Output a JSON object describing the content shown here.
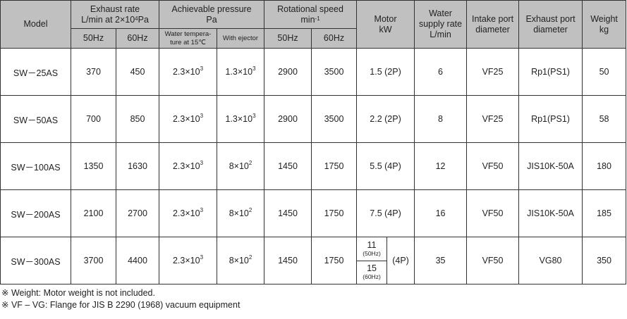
{
  "header": {
    "model": "Model",
    "exhaust_rate": {
      "title": "Exhaust rate",
      "unit_pre": "L/min at 2×10",
      "unit_exp": "4",
      "unit_post": "Pa"
    },
    "pressure": {
      "title": "Achievable pressure",
      "unit": "Pa"
    },
    "speed": {
      "title": "Rotational speed",
      "unit": "min",
      "unit_exp": "-1"
    },
    "motor": {
      "title": "Motor",
      "unit": "kW"
    },
    "water": {
      "line1": "Water",
      "line2": "supply rate",
      "line3": "L/min"
    },
    "intake": {
      "line1": "Intake port",
      "line2": "diameter"
    },
    "exhaust_port": {
      "line1": "Exhaust port",
      "line2": "diameter"
    },
    "weight": {
      "line1": "Weight",
      "line2": "kg"
    },
    "sub": {
      "hz50": "50Hz",
      "hz60": "60Hz",
      "water_temp_1": "Water tempera-",
      "water_temp_2": "ture at 15℃",
      "with_ejector": "With ejector",
      "speed_hz50": "50Hz",
      "speed_hz60": "60Hz"
    }
  },
  "rows": [
    {
      "model": "SW－25AS",
      "ex50": "370",
      "ex60": "450",
      "p_base": "2.3×10",
      "p_exp": "3",
      "e_base": "1.3×10",
      "e_exp": "3",
      "s50": "2900",
      "s60": "3500",
      "motor": "1.5 (2P)",
      "water": "6",
      "intake": "VF25",
      "exhaust": "Rp1(PS1)",
      "weight": "50"
    },
    {
      "model": "SW－50AS",
      "ex50": "700",
      "ex60": "850",
      "p_base": "2.3×10",
      "p_exp": "3",
      "e_base": "1.3×10",
      "e_exp": "3",
      "s50": "2900",
      "s60": "3500",
      "motor": "2.2 (2P)",
      "water": "8",
      "intake": "VF25",
      "exhaust": "Rp1(PS1)",
      "weight": "58"
    },
    {
      "model": "SW－100AS",
      "ex50": "1350",
      "ex60": "1630",
      "p_base": "2.3×10",
      "p_exp": "3",
      "e_base": "8×10",
      "e_exp": "2",
      "s50": "1450",
      "s60": "1750",
      "motor": "5.5 (4P)",
      "water": "12",
      "intake": "VF50",
      "exhaust": "JIS10K-50A",
      "weight": "180"
    },
    {
      "model": "SW－200AS",
      "ex50": "2100",
      "ex60": "2700",
      "p_base": "2.3×10",
      "p_exp": "3",
      "e_base": "8×10",
      "e_exp": "2",
      "s50": "1450",
      "s60": "1750",
      "motor": "7.5 (4P)",
      "water": "16",
      "intake": "VF50",
      "exhaust": "JIS10K-50A",
      "weight": "185"
    },
    {
      "model": "SW－300AS",
      "ex50": "3700",
      "ex60": "4400",
      "p_base": "2.3×10",
      "p_exp": "3",
      "e_base": "8×10",
      "e_exp": "2",
      "s50": "1450",
      "s60": "1750",
      "motor_split": {
        "v50": "11",
        "hz50": "(50Hz)",
        "v60": "15",
        "hz60": "(60Hz)",
        "poles": "(4P)"
      },
      "water": "35",
      "intake": "VF50",
      "exhaust": "VG80",
      "weight": "350"
    }
  ],
  "notes": [
    "※ Weight: Motor weight is not included.",
    "※ VF – VG: Flange for JIS B 2290 (1968) vacuum equipment"
  ]
}
